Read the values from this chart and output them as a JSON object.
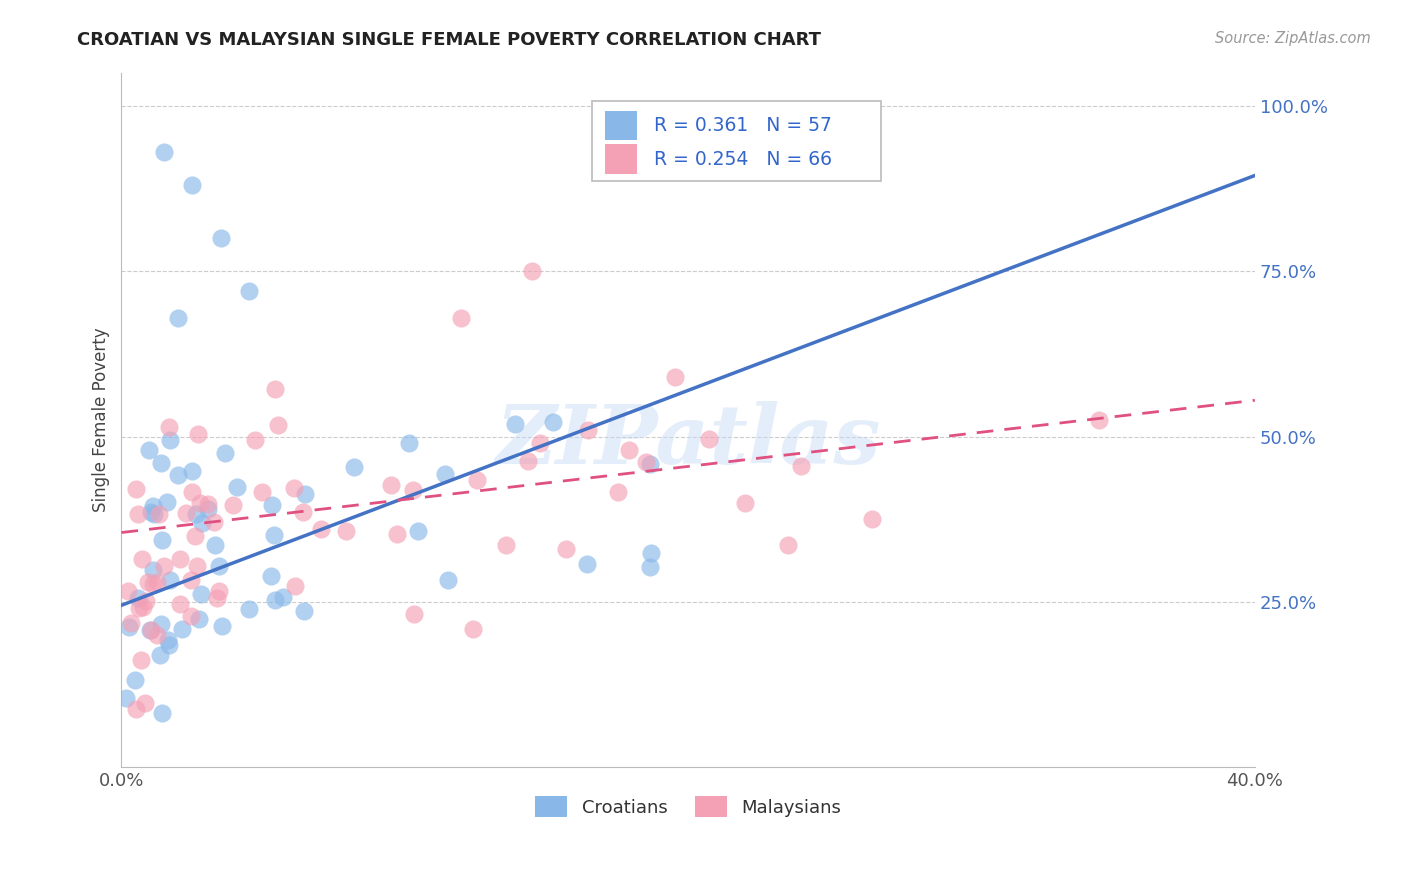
{
  "title": "CROATIAN VS MALAYSIAN SINGLE FEMALE POVERTY CORRELATION CHART",
  "source": "Source: ZipAtlas.com",
  "ylabel": "Single Female Poverty",
  "watermark": "ZIPatlas",
  "xlim": [
    0.0,
    0.4
  ],
  "ylim": [
    0.0,
    1.05
  ],
  "xticks": [
    0.0,
    0.1,
    0.2,
    0.3,
    0.4
  ],
  "xtick_labels": [
    "0.0%",
    "",
    "",
    "",
    "40.0%"
  ],
  "yticks": [
    0.25,
    0.5,
    0.75,
    1.0
  ],
  "ytick_labels": [
    "25.0%",
    "50.0%",
    "75.0%",
    "100.0%"
  ],
  "croatian_R": 0.361,
  "croatian_N": 57,
  "malaysian_R": 0.254,
  "malaysian_N": 66,
  "croatian_color": "#89b8e8",
  "malaysian_color": "#f4a0b5",
  "croatian_line_color": "#4472c4",
  "malaysian_line_color": "#e05080",
  "background_color": "#ffffff",
  "grid_color": "#cccccc",
  "title_color": "#222222",
  "source_color": "#999999",
  "legend_R_N_color": "#3366cc",
  "cro_trend_x": [
    0.0,
    0.4
  ],
  "cro_trend_y": [
    0.245,
    0.895
  ],
  "mal_trend_x": [
    0.0,
    0.4
  ],
  "mal_trend_y": [
    0.355,
    0.555
  ]
}
